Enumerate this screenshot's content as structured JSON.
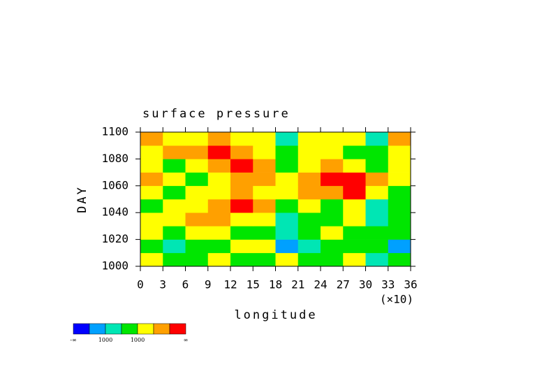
{
  "chart_data": {
    "type": "heatmap",
    "title": "surface pressure",
    "xlabel": "longitude",
    "ylabel": "DAY",
    "x_multiplier": "(×10)",
    "xlim": [
      0,
      36
    ],
    "xticks": [
      0,
      3,
      6,
      9,
      12,
      15,
      18,
      21,
      24,
      27,
      30,
      33,
      36
    ],
    "ylim": [
      1000,
      1100
    ],
    "yticks": [
      1000,
      1020,
      1040,
      1060,
      1080,
      1100
    ],
    "xbins": [
      0,
      3,
      6,
      9,
      12,
      15,
      18,
      21,
      24,
      27,
      30,
      33,
      36
    ],
    "ybins": [
      1000,
      1010,
      1020,
      1030,
      1040,
      1050,
      1060,
      1070,
      1080,
      1090,
      1100
    ],
    "z": [
      [
        4,
        3,
        3,
        4,
        3,
        3,
        4,
        3,
        3,
        4,
        2,
        3
      ],
      [
        3,
        2,
        3,
        3,
        4,
        4,
        1,
        2,
        3,
        3,
        3,
        1
      ],
      [
        4,
        3,
        4,
        4,
        3,
        3,
        2,
        3,
        4,
        3,
        3,
        3
      ],
      [
        4,
        4,
        5,
        5,
        4,
        4,
        2,
        3,
        3,
        4,
        2,
        3
      ],
      [
        3,
        4,
        4,
        5,
        6,
        5,
        3,
        4,
        3,
        4,
        2,
        3
      ],
      [
        4,
        3,
        4,
        4,
        5,
        4,
        4,
        5,
        5,
        6,
        4,
        3
      ],
      [
        5,
        4,
        3,
        4,
        5,
        5,
        4,
        5,
        6,
        6,
        5,
        4
      ],
      [
        4,
        3,
        4,
        5,
        6,
        5,
        3,
        4,
        5,
        4,
        3,
        4
      ],
      [
        4,
        5,
        5,
        6,
        5,
        4,
        3,
        4,
        4,
        3,
        3,
        4
      ],
      [
        5,
        4,
        4,
        5,
        4,
        4,
        2,
        4,
        4,
        4,
        2,
        5
      ]
    ],
    "colorbar": {
      "colors": [
        "#0000ff",
        "#00a0ff",
        "#00e6b4",
        "#00e600",
        "#ffff00",
        "#ffa000",
        "#ff0000"
      ],
      "labels": [
        "-∞",
        "1000",
        "1000",
        "∞"
      ]
    }
  }
}
